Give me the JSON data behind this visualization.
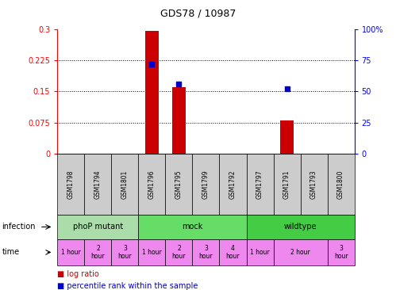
{
  "title": "GDS78 / 10987",
  "samples": [
    "GSM1798",
    "GSM1794",
    "GSM1801",
    "GSM1796",
    "GSM1795",
    "GSM1799",
    "GSM1792",
    "GSM1797",
    "GSM1791",
    "GSM1793",
    "GSM1800"
  ],
  "log_ratio": [
    0,
    0,
    0,
    0.295,
    0.16,
    0,
    0,
    0,
    0.08,
    0,
    0
  ],
  "percentile_vals": [
    null,
    null,
    null,
    0.215,
    0.168,
    null,
    null,
    null,
    0.156,
    null,
    null
  ],
  "ylim_left": [
    0,
    0.3
  ],
  "ylim_right": [
    0,
    100
  ],
  "yticks_left": [
    0,
    0.075,
    0.15,
    0.225,
    0.3
  ],
  "yticks_right": [
    0,
    25,
    50,
    75,
    100
  ],
  "ytick_labels_left": [
    "0",
    "0.075",
    "0.15",
    "0.225",
    "0.3"
  ],
  "ytick_labels_right": [
    "0",
    "25",
    "50",
    "75",
    "100%"
  ],
  "hlines": [
    0.075,
    0.15,
    0.225
  ],
  "infection_groups": [
    {
      "label": "phoP mutant",
      "start": 0,
      "end": 3,
      "color": "#90ee90"
    },
    {
      "label": "mock",
      "start": 3,
      "end": 7,
      "color": "#66dd66"
    },
    {
      "label": "wildtype",
      "start": 7,
      "end": 11,
      "color": "#44cc44"
    }
  ],
  "time_items": [
    {
      "start": 0,
      "end": 1,
      "label": "1 hour"
    },
    {
      "start": 1,
      "end": 2,
      "label": "2\nhour"
    },
    {
      "start": 2,
      "end": 3,
      "label": "3\nhour"
    },
    {
      "start": 3,
      "end": 4,
      "label": "1 hour"
    },
    {
      "start": 4,
      "end": 5,
      "label": "2\nhour"
    },
    {
      "start": 5,
      "end": 6,
      "label": "3\nhour"
    },
    {
      "start": 6,
      "end": 7,
      "label": "4\nhour"
    },
    {
      "start": 7,
      "end": 8,
      "label": "1 hour"
    },
    {
      "start": 8,
      "end": 10,
      "label": "2 hour"
    },
    {
      "start": 10,
      "end": 11,
      "label": "3\nhour"
    }
  ],
  "bar_color": "#cc0000",
  "percentile_color": "#0000cc",
  "sample_bg_color": "#cccccc",
  "infection_color_light": "#aaddaa",
  "infection_color_mid": "#66dd66",
  "infection_color_dark": "#44cc44",
  "time_bg_color": "#ee88ee",
  "legend_bar_label": "log ratio",
  "legend_pct_label": "percentile rank within the sample"
}
